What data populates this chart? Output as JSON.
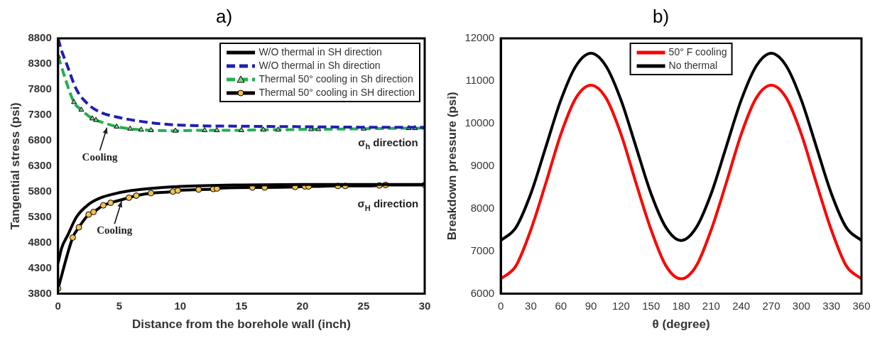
{
  "chart_data": [
    {
      "type": "line",
      "title": "a)",
      "xlabel": "Distance from the borehole wall (inch)",
      "ylabel": "Tangential stress (psi)",
      "xlim": [
        0,
        30
      ],
      "xticks": [
        0,
        5,
        10,
        15,
        20,
        25,
        30
      ],
      "ylim": [
        3800,
        8800
      ],
      "yticks": [
        3800,
        4300,
        4800,
        5300,
        5800,
        6300,
        6800,
        7300,
        7800,
        8300,
        8800
      ],
      "grid": false,
      "legend": "top right",
      "annotations": [
        {
          "text": "Cooling",
          "x": 4,
          "y": 7080
        },
        {
          "text": "Cooling",
          "x": 5.2,
          "y": 5640
        },
        "σ$_{h}$ direction",
        "σ$_{H}$ direction"
      ],
      "series": [
        {
          "name": "W/O thermal in SH direction",
          "color": "#000000",
          "line_style": "solid",
          "marker": "none",
          "x": [
            0,
            0.3,
            0.8,
            1.5,
            2.5,
            3.5,
            4.5,
            6,
            7.5,
            10,
            15,
            20,
            25,
            30
          ],
          "values": [
            4400,
            4700,
            4950,
            5300,
            5550,
            5680,
            5750,
            5820,
            5860,
            5900,
            5930,
            5940,
            5940,
            5940
          ]
        },
        {
          "name": "W/O thermal in Sh direction",
          "color": "#1f1fb4",
          "line_style": "dashed",
          "marker": "none",
          "x": [
            0,
            0.3,
            0.7,
            1.5,
            2.5,
            3.5,
            5,
            7.5,
            10,
            15,
            20,
            25,
            30
          ],
          "values": [
            8800,
            8550,
            8300,
            7800,
            7500,
            7350,
            7250,
            7150,
            7100,
            7080,
            7070,
            7060,
            7060
          ]
        },
        {
          "name": "Thermal 50° cooling in Sh direction",
          "color": "#22b04c",
          "line_style": "dashed",
          "marker": "triangle",
          "x": [
            0,
            1.3,
            1.9,
            2.8,
            3.1,
            4.8,
            5.9,
            6.8,
            7.6,
            9.6,
            12,
            13,
            15,
            16.8,
            18,
            20.7,
            21.3,
            25,
            28.7,
            29.2,
            30
          ],
          "values": [
            8450,
            7550,
            7400,
            7230,
            7200,
            7070,
            7030,
            7010,
            7000,
            6990,
            7000,
            7000,
            7000,
            7010,
            7010,
            7020,
            7020,
            7030,
            7040,
            7040,
            7050
          ]
        },
        {
          "name": "Thermal 50° cooling in SH direction",
          "color": "#000000",
          "line_style": "solid",
          "marker": "circle",
          "x": [
            0,
            1.2,
            1.7,
            2.5,
            2.9,
            3.7,
            4.3,
            5.8,
            6.4,
            7.6,
            9.4,
            9.8,
            11.5,
            12.7,
            13,
            15.9,
            16.9,
            19.4,
            20.2,
            20.5,
            22.9,
            23.5,
            26.3,
            26.8,
            30
          ],
          "values": [
            3900,
            4900,
            5100,
            5350,
            5400,
            5530,
            5580,
            5680,
            5720,
            5770,
            5800,
            5820,
            5840,
            5850,
            5860,
            5880,
            5880,
            5890,
            5900,
            5900,
            5910,
            5910,
            5920,
            5930,
            5930
          ]
        }
      ]
    },
    {
      "type": "line",
      "title": "b)",
      "xlabel": "θ (degree)",
      "ylabel": "Breakdown pressure (psi)",
      "xlim": [
        0,
        360
      ],
      "xticks": [
        0,
        30,
        60,
        90,
        120,
        150,
        180,
        210,
        240,
        270,
        300,
        330,
        360
      ],
      "ylim": [
        6000,
        12000
      ],
      "yticks": [
        6000,
        7000,
        8000,
        9000,
        10000,
        11000,
        12000
      ],
      "grid": false,
      "legend": "top",
      "x": [
        0,
        15,
        30,
        45,
        60,
        75,
        90,
        105,
        120,
        135,
        150,
        165,
        180,
        195,
        210,
        225,
        240,
        255,
        270,
        285,
        300,
        315,
        330,
        345,
        360
      ],
      "series": [
        {
          "name": "50° F cooling",
          "color": "#ff0000",
          "values": [
            6350,
            6650,
            7500,
            8600,
            9750,
            10600,
            10900,
            10600,
            9750,
            8600,
            7500,
            6650,
            6350,
            6650,
            7500,
            8600,
            9750,
            10600,
            10900,
            10600,
            9750,
            8600,
            7500,
            6650,
            6350
          ]
        },
        {
          "name": "No thermal",
          "color": "#000000",
          "values": [
            7250,
            7550,
            8350,
            9450,
            10550,
            11350,
            11650,
            11350,
            10550,
            9450,
            8350,
            7550,
            7250,
            7550,
            8350,
            9450,
            10550,
            11350,
            11650,
            11350,
            10550,
            9450,
            8350,
            7550,
            7250
          ]
        }
      ]
    }
  ]
}
